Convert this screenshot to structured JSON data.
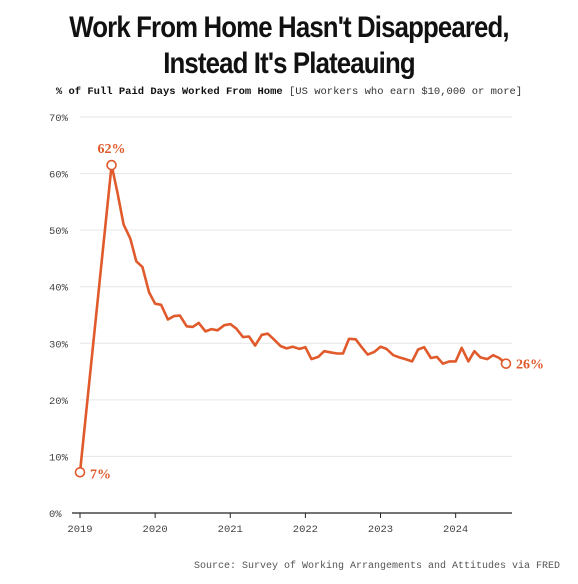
{
  "title_line1": "Work From Home Hasn't Disappeared,",
  "title_line2": "Instead It's Plateauing",
  "subtitle_main": "% of Full Paid Days Worked From Home",
  "subtitle_note": "[US workers who earn $10,000 or more]",
  "source": "Source: Survey of Working Arrangements and Attitudes via FRED",
  "colors": {
    "line": "#e05a2b",
    "grid": "#e6e6e6",
    "axis": "#222222"
  },
  "chart_data": {
    "type": "line",
    "title": "Work From Home Hasn't Disappeared, Instead It's Plateauing",
    "subtitle": "% of Full Paid Days Worked From Home [US workers who earn $10,000 or more]",
    "xlim": [
      2019,
      2024.75
    ],
    "ylim": [
      0,
      70
    ],
    "x_ticks": [
      2019,
      2020,
      2021,
      2022,
      2023,
      2024
    ],
    "x_tick_labels": [
      "2019",
      "2020",
      "2021",
      "2022",
      "2023",
      "2024"
    ],
    "y_ticks": [
      0,
      10,
      20,
      30,
      40,
      50,
      60,
      70
    ],
    "y_tick_labels": [
      "0%",
      "10%",
      "20%",
      "30%",
      "40%",
      "50%",
      "60%",
      "70%"
    ],
    "grid": true,
    "series": [
      {
        "x": [
          2019.0,
          2019.42,
          2019.5,
          2019.58,
          2019.67,
          2019.75,
          2019.83,
          2019.92,
          2020.0,
          2020.08,
          2020.17,
          2020.25,
          2020.33,
          2020.42,
          2020.5,
          2020.58,
          2020.67,
          2020.75,
          2020.83,
          2020.92,
          2021.0,
          2021.08,
          2021.17,
          2021.25,
          2021.33,
          2021.42,
          2021.5,
          2021.58,
          2021.67,
          2021.75,
          2021.83,
          2021.92,
          2022.0,
          2022.08,
          2022.17,
          2022.25,
          2022.33,
          2022.42,
          2022.5,
          2022.58,
          2022.67,
          2022.75,
          2022.83,
          2022.92,
          2023.0,
          2023.08,
          2023.17,
          2023.25,
          2023.33,
          2023.42,
          2023.5,
          2023.58,
          2023.67,
          2023.75,
          2023.83,
          2023.92,
          2024.0,
          2024.08,
          2024.17,
          2024.25,
          2024.33,
          2024.42,
          2024.5,
          2024.58,
          2024.67
        ],
        "values": [
          7.2,
          61.5,
          56.5,
          51.0,
          48.5,
          44.5,
          43.5,
          39.0,
          37.0,
          36.8,
          34.2,
          34.8,
          34.9,
          33.0,
          32.9,
          33.6,
          32.1,
          32.5,
          32.3,
          33.2,
          33.4,
          32.6,
          31.1,
          31.2,
          29.6,
          31.5,
          31.7,
          30.7,
          29.5,
          29.1,
          29.4,
          29.0,
          29.3,
          27.2,
          27.6,
          28.6,
          28.4,
          28.2,
          28.2,
          30.8,
          30.7,
          29.3,
          28.0,
          28.5,
          29.4,
          29.0,
          27.9,
          27.5,
          27.2,
          26.8,
          28.9,
          29.3,
          27.4,
          27.6,
          26.4,
          26.8,
          26.8,
          29.2,
          26.8,
          28.6,
          27.5,
          27.2,
          27.9,
          27.4,
          26.4
        ]
      }
    ],
    "annotations": [
      {
        "x": 2019.0,
        "y": 7.2,
        "text": "7%"
      },
      {
        "x": 2019.42,
        "y": 61.5,
        "text": "62%"
      },
      {
        "x": 2024.67,
        "y": 26.4,
        "text": "26%"
      }
    ]
  }
}
